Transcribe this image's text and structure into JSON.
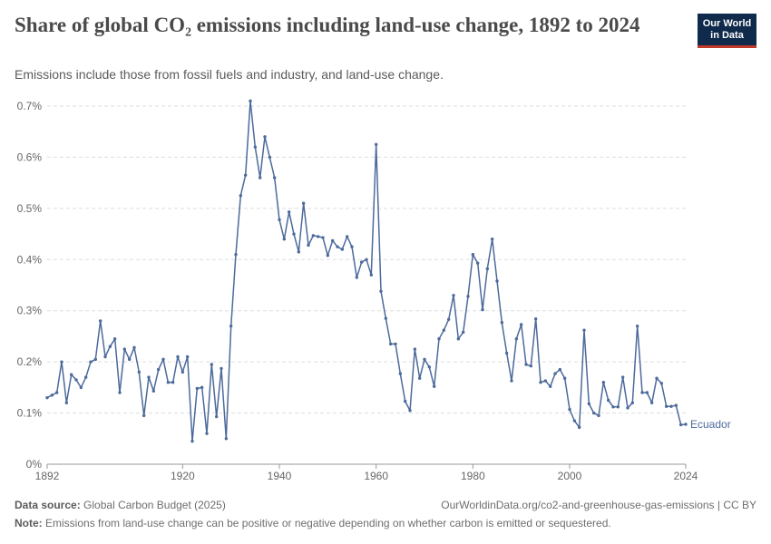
{
  "header": {
    "title": "Share of global CO₂ emissions including land-use change, 1892 to 2024",
    "subtitle": "Emissions include those from fossil fuels and industry, and land-use change."
  },
  "logo": {
    "line1": "Our World",
    "line2": "in Data"
  },
  "footer": {
    "source_label": "Data source:",
    "source": "Global Carbon Budget (2025)",
    "url": "OurWorldinData.org/co2-and-greenhouse-gas-emissions | CC BY",
    "note_label": "Note:",
    "note": "Emissions from land-use change can be positive or negative depending on whether carbon is emitted or sequestered."
  },
  "colors": {
    "series": "#4c6a9c",
    "grid": "#dddddd",
    "axis": "#999999"
  },
  "chart_data": {
    "type": "line",
    "title": "Share of global CO₂ emissions including land-use change, 1892 to 2024",
    "ylim": [
      0,
      0.7
    ],
    "xlim": [
      1892,
      2024
    ],
    "yticks": [
      0,
      0.1,
      0.2,
      0.3,
      0.4,
      0.5,
      0.6,
      0.7
    ],
    "ytick_labels": [
      "0%",
      "0.1%",
      "0.2%",
      "0.3%",
      "0.4%",
      "0.5%",
      "0.6%",
      "0.7%"
    ],
    "xticks": [
      1892,
      1920,
      1940,
      1960,
      1980,
      2000,
      2024
    ],
    "grid": "horizontal dashed",
    "series": [
      {
        "name": "Ecuador",
        "x": [
          1892,
          1893,
          1894,
          1895,
          1896,
          1897,
          1898,
          1899,
          1900,
          1901,
          1902,
          1903,
          1904,
          1905,
          1906,
          1907,
          1908,
          1909,
          1910,
          1911,
          1912,
          1913,
          1914,
          1915,
          1916,
          1917,
          1918,
          1919,
          1920,
          1921,
          1922,
          1923,
          1924,
          1925,
          1926,
          1927,
          1928,
          1929,
          1930,
          1931,
          1932,
          1933,
          1934,
          1935,
          1936,
          1937,
          1938,
          1939,
          1940,
          1941,
          1942,
          1943,
          1944,
          1945,
          1946,
          1947,
          1948,
          1949,
          1950,
          1951,
          1952,
          1953,
          1954,
          1955,
          1956,
          1957,
          1958,
          1959,
          1960,
          1961,
          1962,
          1963,
          1964,
          1965,
          1966,
          1967,
          1968,
          1969,
          1970,
          1971,
          1972,
          1973,
          1974,
          1975,
          1976,
          1977,
          1978,
          1979,
          1980,
          1981,
          1982,
          1983,
          1984,
          1985,
          1986,
          1987,
          1988,
          1989,
          1990,
          1991,
          1992,
          1993,
          1994,
          1995,
          1996,
          1997,
          1998,
          1999,
          2000,
          2001,
          2002,
          2003,
          2004,
          2005,
          2006,
          2007,
          2008,
          2009,
          2010,
          2011,
          2012,
          2013,
          2014,
          2015,
          2016,
          2017,
          2018,
          2019,
          2020,
          2021,
          2022,
          2023,
          2024
        ],
        "values": [
          0.13,
          0.135,
          0.14,
          0.2,
          0.12,
          0.175,
          0.165,
          0.15,
          0.17,
          0.2,
          0.205,
          0.28,
          0.21,
          0.23,
          0.245,
          0.14,
          0.225,
          0.205,
          0.228,
          0.18,
          0.095,
          0.17,
          0.143,
          0.185,
          0.205,
          0.16,
          0.16,
          0.21,
          0.18,
          0.21,
          0.045,
          0.148,
          0.15,
          0.06,
          0.195,
          0.093,
          0.187,
          0.05,
          0.27,
          0.41,
          0.525,
          0.565,
          0.71,
          0.62,
          0.56,
          0.64,
          0.6,
          0.56,
          0.478,
          0.44,
          0.493,
          0.45,
          0.415,
          0.51,
          0.428,
          0.447,
          0.445,
          0.443,
          0.408,
          0.437,
          0.425,
          0.42,
          0.445,
          0.425,
          0.365,
          0.395,
          0.4,
          0.37,
          0.625,
          0.338,
          0.285,
          0.235,
          0.235,
          0.177,
          0.123,
          0.105,
          0.225,
          0.168,
          0.205,
          0.19,
          0.152,
          0.245,
          0.262,
          0.283,
          0.33,
          0.245,
          0.258,
          0.328,
          0.41,
          0.393,
          0.302,
          0.382,
          0.44,
          0.358,
          0.277,
          0.217,
          0.163,
          0.245,
          0.273,
          0.195,
          0.192,
          0.284,
          0.16,
          0.163,
          0.152,
          0.177,
          0.185,
          0.168,
          0.107,
          0.085,
          0.072,
          0.262,
          0.118,
          0.1,
          0.095,
          0.16,
          0.125,
          0.112,
          0.112,
          0.17,
          0.11,
          0.12,
          0.27,
          0.14,
          0.14,
          0.12,
          0.168,
          0.158,
          0.113,
          0.113,
          0.115,
          0.077,
          0.078
        ]
      }
    ]
  }
}
